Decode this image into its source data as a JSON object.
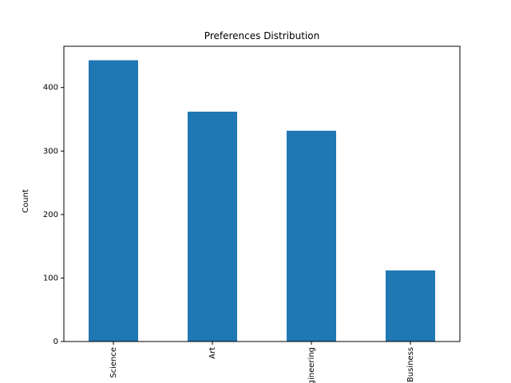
{
  "chart_data": {
    "type": "bar",
    "title": "Preferences Distribution",
    "xlabel": "",
    "ylabel": "Count",
    "categories": [
      "Science",
      "Art",
      "Engineering",
      "Business"
    ],
    "values": [
      443,
      362,
      332,
      112
    ],
    "ylim": [
      0,
      465
    ],
    "yticks": [
      0,
      100,
      200,
      300,
      400
    ],
    "bar_color": "#1f77b4",
    "grid": false,
    "legend": "none",
    "xtick_rotation": 90
  }
}
